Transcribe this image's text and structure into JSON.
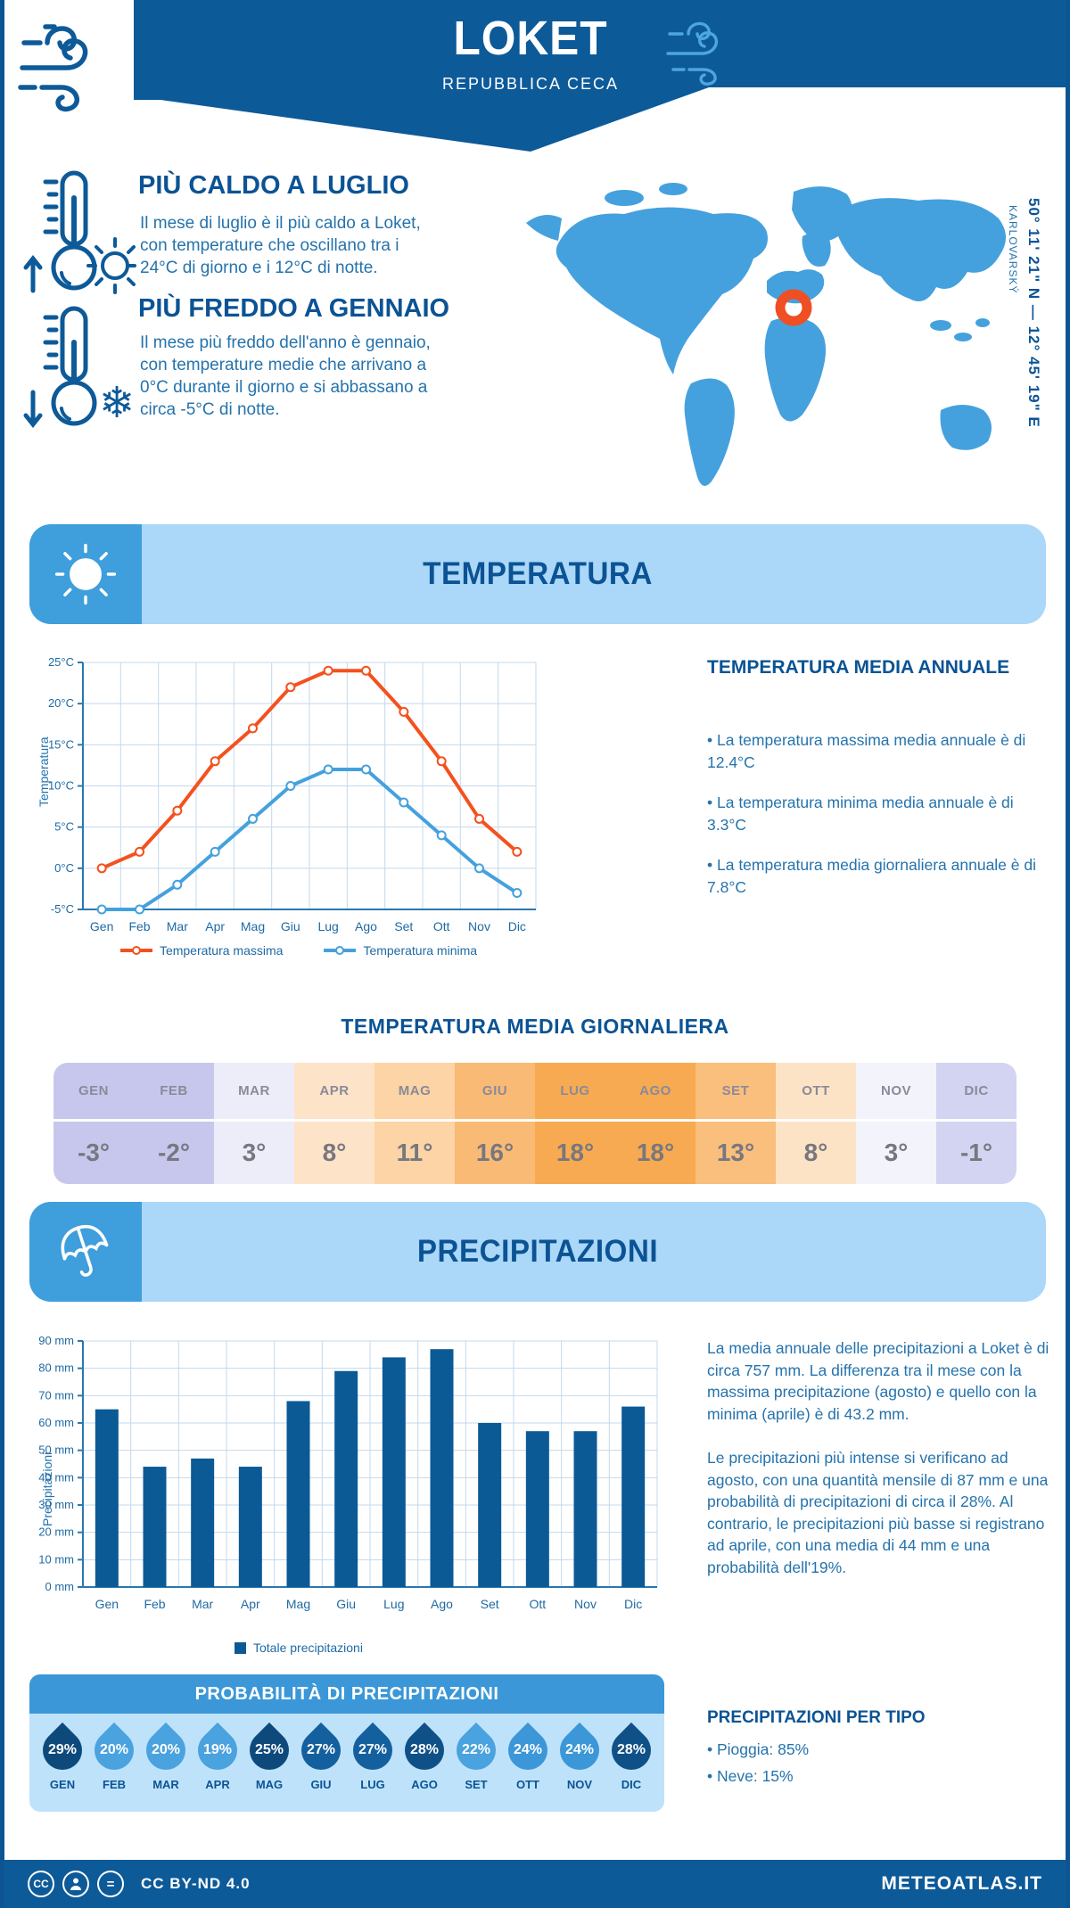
{
  "header": {
    "title": "LOKET",
    "subtitle": "REPUBBLICA CECA"
  },
  "highlights": [
    {
      "title": "PIÙ CALDO A LUGLIO",
      "text": "Il mese di luglio è il più caldo a Loket, con temperature che oscillano tra i 24°C di giorno e i 12°C di notte."
    },
    {
      "title": "PIÙ FREDDO A GENNAIO",
      "text": "Il mese più freddo dell'anno è gennaio, con temperature medie che arrivano a 0°C durante il giorno e si abbassano a circa -5°C di notte."
    }
  ],
  "map": {
    "coordinates": "50° 11' 21\" N — 12° 45' 19\" E",
    "region": "KARLOVARSKÝ"
  },
  "temperature_section": {
    "banner_title": "TEMPERATURA",
    "annual": {
      "title": "TEMPERATURA MEDIA ANNUALE",
      "bullets": [
        "• La temperatura massima media annuale è di 12.4°C",
        "• La temperatura minima media annuale è di 3.3°C",
        "• La temperatura media giornaliera annuale è di 7.8°C"
      ]
    },
    "daily": {
      "title": "TEMPERATURA MEDIA GIORNALIERA",
      "months": [
        "GEN",
        "FEB",
        "MAR",
        "APR",
        "MAG",
        "GIU",
        "LUG",
        "AGO",
        "SET",
        "OTT",
        "NOV",
        "DIC"
      ],
      "values": [
        "-3°",
        "-2°",
        "3°",
        "8°",
        "11°",
        "16°",
        "18°",
        "18°",
        "13°",
        "8°",
        "3°",
        "-1°"
      ],
      "colors": [
        "#c7c7ee",
        "#c7c7ee",
        "#ededf9",
        "#fde4c8",
        "#fcd4a6",
        "#f9ba76",
        "#f7aa51",
        "#f7aa51",
        "#fabe7d",
        "#fde3c5",
        "#f3f3fb",
        "#d3d4f2"
      ]
    }
  },
  "precipitation_section": {
    "banner_title": "PRECIPITAZIONI",
    "text": [
      "La media annuale delle precipitazioni a Loket è di circa 757 mm. La differenza tra il mese con la massima precipitazione (agosto) e quello con la minima (aprile) è di 43.2 mm.",
      "Le precipitazioni più intense si verificano ad agosto, con una quantità mensile di 87 mm e una probabilità di precipitazioni di circa il 28%. Al contrario, le precipitazioni più basse si registrano ad aprile, con una media di 44 mm e una probabilità dell'19%."
    ],
    "probability": {
      "title": "PROBABILITÀ DI PRECIPITAZIONI",
      "items": [
        {
          "pct": "29%",
          "month": "GEN",
          "color": "#0d4a7b"
        },
        {
          "pct": "20%",
          "month": "FEB",
          "color": "#4aa2de"
        },
        {
          "pct": "20%",
          "month": "MAR",
          "color": "#4aa2de"
        },
        {
          "pct": "19%",
          "month": "APR",
          "color": "#4aa2de"
        },
        {
          "pct": "25%",
          "month": "MAG",
          "color": "#0d4a7b"
        },
        {
          "pct": "27%",
          "month": "GIU",
          "color": "#14609f"
        },
        {
          "pct": "27%",
          "month": "LUG",
          "color": "#14609f"
        },
        {
          "pct": "28%",
          "month": "AGO",
          "color": "#0f5187"
        },
        {
          "pct": "22%",
          "month": "SET",
          "color": "#4aa2de"
        },
        {
          "pct": "24%",
          "month": "OTT",
          "color": "#3b97d7"
        },
        {
          "pct": "24%",
          "month": "NOV",
          "color": "#3b97d7"
        },
        {
          "pct": "28%",
          "month": "DIC",
          "color": "#0f5187"
        }
      ]
    },
    "types": {
      "title": "PRECIPITAZIONI PER TIPO",
      "bullets": [
        "• Pioggia: 85%",
        "• Neve: 15%"
      ]
    }
  },
  "footer": {
    "license": "CC BY-ND 4.0",
    "brand": "METEOATLAS.IT"
  },
  "colors": {
    "primary_dark": "#0b5394",
    "accent_blue": "#3b97d7",
    "light_blue": "#abd7f8",
    "orange_line": "#f4511e",
    "bar_blue": "#0b5a96",
    "marker_orange": "#f04e23"
  },
  "chart_data": [
    {
      "type": "line",
      "title": "",
      "categories": [
        "Gen",
        "Feb",
        "Mar",
        "Apr",
        "Mag",
        "Giu",
        "Lug",
        "Ago",
        "Set",
        "Ott",
        "Nov",
        "Dic"
      ],
      "series": [
        {
          "name": "Temperatura massima",
          "color": "#f4511e",
          "values": [
            0,
            2,
            7,
            13,
            17,
            22,
            24,
            24,
            19,
            13,
            6,
            2
          ]
        },
        {
          "name": "Temperatura minima",
          "color": "#45a1dd",
          "values": [
            -5,
            -5,
            -2,
            2,
            6,
            10,
            12,
            12,
            8,
            4,
            0,
            -3
          ]
        }
      ],
      "xlabel": "",
      "ylabel": "Temperatura",
      "ylim": [
        -5,
        25
      ],
      "ytick_step": 5,
      "ytick_suffix": "°C",
      "grid": true,
      "legend_position": "bottom"
    },
    {
      "type": "bar",
      "title": "",
      "categories": [
        "Gen",
        "Feb",
        "Mar",
        "Apr",
        "Mag",
        "Giu",
        "Lug",
        "Ago",
        "Set",
        "Ott",
        "Nov",
        "Dic"
      ],
      "series": [
        {
          "name": "Totale precipitazioni",
          "color": "#0b5a96",
          "values": [
            65,
            44,
            47,
            44,
            68,
            79,
            84,
            87,
            60,
            57,
            57,
            66
          ]
        }
      ],
      "xlabel": "",
      "ylabel": "Precipitazioni",
      "ylim": [
        0,
        90
      ],
      "ytick_step": 10,
      "ytick_suffix": " mm",
      "grid": true,
      "legend_position": "bottom"
    }
  ]
}
